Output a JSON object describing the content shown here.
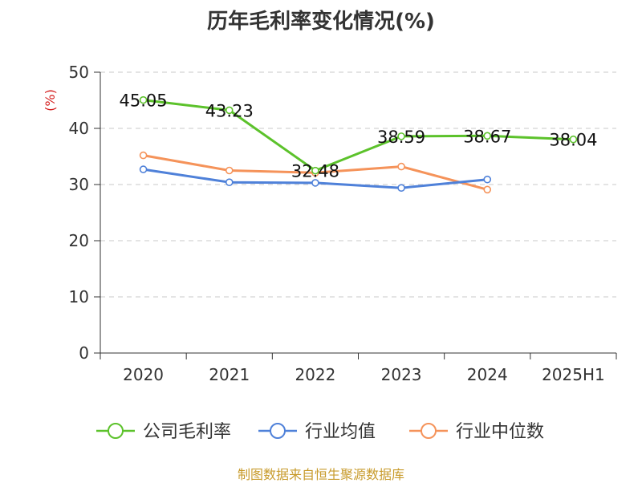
{
  "chart_data": {
    "type": "line",
    "title": "历年毛利率变化情况(%)",
    "ylabel": "(%)",
    "xlabel": "",
    "categories": [
      "2020",
      "2021",
      "2022",
      "2023",
      "2024",
      "2025H1"
    ],
    "ylim": [
      0,
      50
    ],
    "yticks": [
      0,
      10,
      20,
      30,
      40,
      50
    ],
    "grid": true,
    "legend_position": "bottom",
    "series": [
      {
        "name": "公司毛利率",
        "color": "#5cc22b",
        "values": [
          45.05,
          43.23,
          32.48,
          38.59,
          38.67,
          38.04
        ],
        "labels": [
          "45.05",
          "43.23",
          "32.48",
          "38.59",
          "38.67",
          "38.04"
        ]
      },
      {
        "name": "行业均值",
        "color": "#4f81d9",
        "values": [
          32.7,
          30.4,
          30.3,
          29.4,
          30.9,
          null
        ]
      },
      {
        "name": "行业中位数",
        "color": "#f5935a",
        "values": [
          35.2,
          32.5,
          32.1,
          33.2,
          29.1,
          null
        ]
      }
    ]
  },
  "footer": {
    "source": "制图数据来自恒生聚源数据库"
  }
}
